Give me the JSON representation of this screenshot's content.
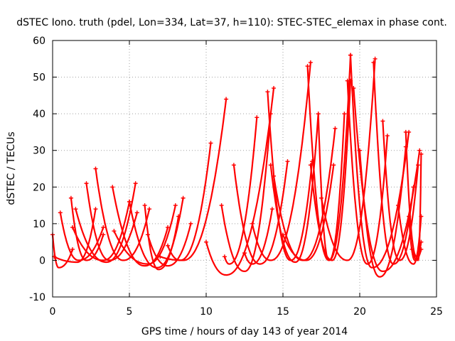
{
  "chart_data": {
    "type": "scatter",
    "title": "dSTEC Iono. truth (pdel, Lon=334, Lat=37, h=110): STEC-STEC_elemax in phase cont.",
    "xlabel": "GPS time / hours of day 143 of year 2014",
    "ylabel": "dSTEC  / TECUs",
    "xlim": [
      0,
      25
    ],
    "ylim": [
      -10,
      60
    ],
    "xticks": [
      0,
      5,
      10,
      15,
      20,
      25
    ],
    "yticks": [
      -10,
      0,
      10,
      20,
      30,
      40,
      50,
      60
    ],
    "grid": true,
    "marker": "plus",
    "color": "#ff0000",
    "passes": [
      {
        "t0": 0.0,
        "tm": 0.4,
        "t1": 1.3,
        "a0": 7,
        "min": -2,
        "a1": 3
      },
      {
        "t0": 0.1,
        "tm": 1.6,
        "t1": 2.8,
        "a0": 1,
        "min": -0.5,
        "a1": 14
      },
      {
        "t0": 0.5,
        "tm": 1.7,
        "t1": 3.3,
        "a0": 13,
        "min": 0,
        "a1": 9
      },
      {
        "t0": 1.2,
        "tm": 2.2,
        "t1": 3.3,
        "a0": 17,
        "min": 0,
        "a1": 7
      },
      {
        "t0": 1.3,
        "tm": 3.3,
        "t1": 5.0,
        "a0": 9,
        "min": 0,
        "a1": 16
      },
      {
        "t0": 1.5,
        "tm": 3.5,
        "t1": 5.4,
        "a0": 14,
        "min": -0.5,
        "a1": 21
      },
      {
        "t0": 2.2,
        "tm": 3.7,
        "t1": 5.5,
        "a0": 21,
        "min": 0,
        "a1": 13
      },
      {
        "t0": 2.8,
        "tm": 4.6,
        "t1": 6.3,
        "a0": 25,
        "min": 0,
        "a1": 14
      },
      {
        "t0": 3.9,
        "tm": 6.0,
        "t1": 7.5,
        "a0": 20,
        "min": -1.5,
        "a1": 9
      },
      {
        "t0": 4.0,
        "tm": 6.2,
        "t1": 8.0,
        "a0": 8,
        "min": -1,
        "a1": 15
      },
      {
        "t0": 5.0,
        "tm": 6.8,
        "t1": 8.5,
        "a0": 16,
        "min": -2,
        "a1": 17
      },
      {
        "t0": 6.0,
        "tm": 6.9,
        "t1": 8.2,
        "a0": 15,
        "min": -2.5,
        "a1": 12
      },
      {
        "t0": 6.2,
        "tm": 7.5,
        "t1": 9.0,
        "a0": 7,
        "min": -1.5,
        "a1": 10
      },
      {
        "t0": 7.0,
        "tm": 8.5,
        "t1": 11.3,
        "a0": 1,
        "min": 0,
        "a1": 44
      },
      {
        "t0": 7.5,
        "tm": 8.3,
        "t1": 10.3,
        "a0": 4,
        "min": 0,
        "a1": 32
      },
      {
        "t0": 10.0,
        "tm": 11.3,
        "t1": 14.4,
        "a0": 5,
        "min": -4,
        "a1": 47
      },
      {
        "t0": 11.0,
        "tm": 12.5,
        "t1": 14.2,
        "a0": 15,
        "min": -3,
        "a1": 40
      },
      {
        "t0": 11.2,
        "tm": 11.5,
        "t1": 13.3,
        "a0": 1,
        "min": -1,
        "a1": 39
      },
      {
        "t0": 11.8,
        "tm": 13.5,
        "t1": 15.3,
        "a0": 26,
        "min": -1,
        "a1": 27
      },
      {
        "t0": 12.5,
        "tm": 13.0,
        "t1": 14.3,
        "a0": 2,
        "min": -1,
        "a1": 14
      },
      {
        "t0": 13.0,
        "tm": 14.2,
        "t1": 16.8,
        "a0": 10,
        "min": 0,
        "a1": 54
      },
      {
        "t0": 14.0,
        "tm": 15.5,
        "t1": 16.9,
        "a0": 46,
        "min": 0,
        "a1": 27
      },
      {
        "t0": 14.2,
        "tm": 15.8,
        "t1": 17.3,
        "a0": 26,
        "min": -0.5,
        "a1": 40
      },
      {
        "t0": 14.4,
        "tm": 16.3,
        "t1": 18.4,
        "a0": 23,
        "min": 0,
        "a1": 36
      },
      {
        "t0": 15.0,
        "tm": 16.5,
        "t1": 18.3,
        "a0": 7,
        "min": 0,
        "a1": 26
      },
      {
        "t0": 16.6,
        "tm": 18.0,
        "t1": 19.4,
        "a0": 53,
        "min": 0,
        "a1": 56
      },
      {
        "t0": 16.8,
        "tm": 18.2,
        "t1": 19.4,
        "a0": 26,
        "min": 0,
        "a1": 49
      },
      {
        "t0": 17.3,
        "tm": 18.0,
        "t1": 19.0,
        "a0": 40,
        "min": 0,
        "a1": 40
      },
      {
        "t0": 17.5,
        "tm": 19.2,
        "t1": 21.0,
        "a0": 17,
        "min": 0,
        "a1": 55
      },
      {
        "t0": 19.2,
        "tm": 20.5,
        "t1": 21.8,
        "a0": 49,
        "min": -1,
        "a1": 34
      },
      {
        "t0": 19.4,
        "tm": 20.8,
        "t1": 23.2,
        "a0": 56,
        "min": -2,
        "a1": 35
      },
      {
        "t0": 19.6,
        "tm": 21.5,
        "t1": 23.9,
        "a0": 47,
        "min": -3,
        "a1": 30
      },
      {
        "t0": 20.0,
        "tm": 21.3,
        "t1": 23.0,
        "a0": 30,
        "min": -4.5,
        "a1": 31
      },
      {
        "t0": 20.9,
        "tm": 22.2,
        "t1": 23.5,
        "a0": 54,
        "min": -1,
        "a1": 20
      },
      {
        "t0": 21.5,
        "tm": 22.6,
        "t1": 23.8,
        "a0": 38,
        "min": 0,
        "a1": 26
      },
      {
        "t0": 22.5,
        "tm": 23.5,
        "t1": 24.0,
        "a0": 15,
        "min": -1,
        "a1": 12
      },
      {
        "t0": 23.0,
        "tm": 23.7,
        "t1": 24.0,
        "a0": 35,
        "min": 1,
        "a1": 5
      },
      {
        "t0": 23.2,
        "tm": 23.6,
        "t1": 24.0,
        "a0": 12,
        "min": 0,
        "a1": 3
      },
      {
        "t0": 23.4,
        "tm": 23.8,
        "t1": 24.0,
        "a0": 3,
        "min": 0,
        "a1": 29
      }
    ]
  }
}
